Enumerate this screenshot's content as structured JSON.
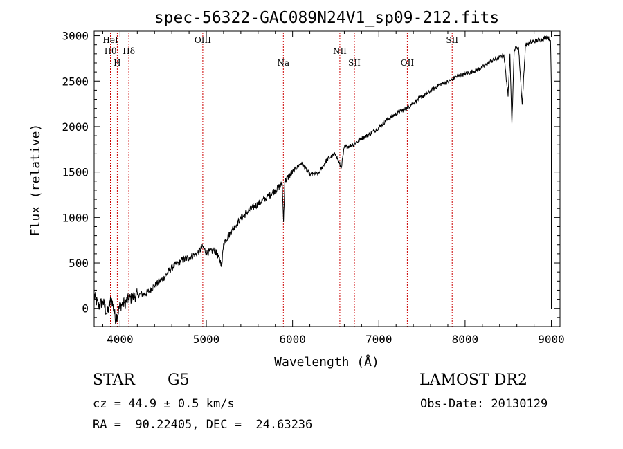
{
  "chart_data": {
    "type": "line",
    "title": "spec-56322-GAC089N24V1_sp09-212.fits",
    "xlabel": "Wavelength (Å)",
    "ylabel": "Flux (relative)",
    "xlim": [
      3700,
      9100
    ],
    "ylim": [
      -200,
      3050
    ],
    "x_ticks": [
      4000,
      5000,
      6000,
      7000,
      8000,
      9000
    ],
    "x_tick_labels": [
      "4000",
      "5000",
      "6000",
      "7000",
      "8000",
      "9000"
    ],
    "y_ticks": [
      0,
      500,
      1000,
      1500,
      2000,
      2500,
      3000
    ],
    "y_tick_labels": [
      "0",
      "500",
      "1000",
      "1500",
      "2000",
      "2500",
      "3000"
    ],
    "grid": false,
    "line_color": "#000000",
    "marker_color": "#cc0000",
    "lines": [
      {
        "label": "Hθ",
        "x": 3889,
        "row": 2
      },
      {
        "label": "HeI",
        "x": 3889,
        "row": 1
      },
      {
        "label": "H",
        "x": 3968,
        "row": 3
      },
      {
        "label": "Hδ",
        "x": 4102,
        "row": 2
      },
      {
        "label": "OIII",
        "x": 4959,
        "row": 1
      },
      {
        "label": "Na",
        "x": 5893,
        "row": 3
      },
      {
        "label": "NII",
        "x": 6548,
        "row": 2
      },
      {
        "label": "SII",
        "x": 6717,
        "row": 3
      },
      {
        "label": "OII",
        "x": 7330,
        "row": 3
      },
      {
        "label": "SII",
        "x": 7850,
        "row": 1
      }
    ],
    "series": [
      {
        "x": [
          3700,
          3750,
          3800,
          3850,
          3900,
          3950,
          4000,
          4050,
          4100,
          4150,
          4200,
          4300,
          4400,
          4500,
          4600,
          4700,
          4800,
          4900,
          4960,
          5000,
          5100,
          5180,
          5200,
          5300,
          5400,
          5500,
          5600,
          5700,
          5800,
          5880,
          5895,
          5910,
          6000,
          6100,
          6200,
          6300,
          6400,
          6500,
          6563,
          6600,
          6700,
          6800,
          6900,
          7000,
          7100,
          7200,
          7300,
          7400,
          7500,
          7600,
          7700,
          7800,
          7900,
          8000,
          8100,
          8200,
          8300,
          8400,
          8450,
          8498,
          8520,
          8542,
          8570,
          8600,
          8620,
          8662,
          8700,
          8800,
          8900,
          8950,
          8990,
          9000
        ],
        "y": [
          150,
          20,
          80,
          -60,
          110,
          -120,
          30,
          60,
          100,
          120,
          150,
          160,
          250,
          330,
          450,
          520,
          560,
          610,
          680,
          610,
          640,
          480,
          720,
          860,
          990,
          1080,
          1150,
          1220,
          1300,
          1370,
          950,
          1400,
          1500,
          1600,
          1470,
          1480,
          1640,
          1700,
          1540,
          1770,
          1800,
          1870,
          1920,
          1990,
          2080,
          2140,
          2190,
          2260,
          2330,
          2390,
          2460,
          2490,
          2550,
          2580,
          2610,
          2650,
          2720,
          2760,
          2790,
          2330,
          2800,
          2030,
          2850,
          2870,
          2870,
          2240,
          2900,
          2940,
          2960,
          2990,
          2950,
          2450
        ]
      }
    ]
  },
  "info": {
    "object_class": "STAR",
    "subclass": "G5",
    "cz": "cz = 44.9 ± 0.5 km/s",
    "coords": "RA =  90.22405, DEC =  24.63236",
    "survey": "LAMOST DR2",
    "obs_date": "Obs-Date: 20130129"
  }
}
